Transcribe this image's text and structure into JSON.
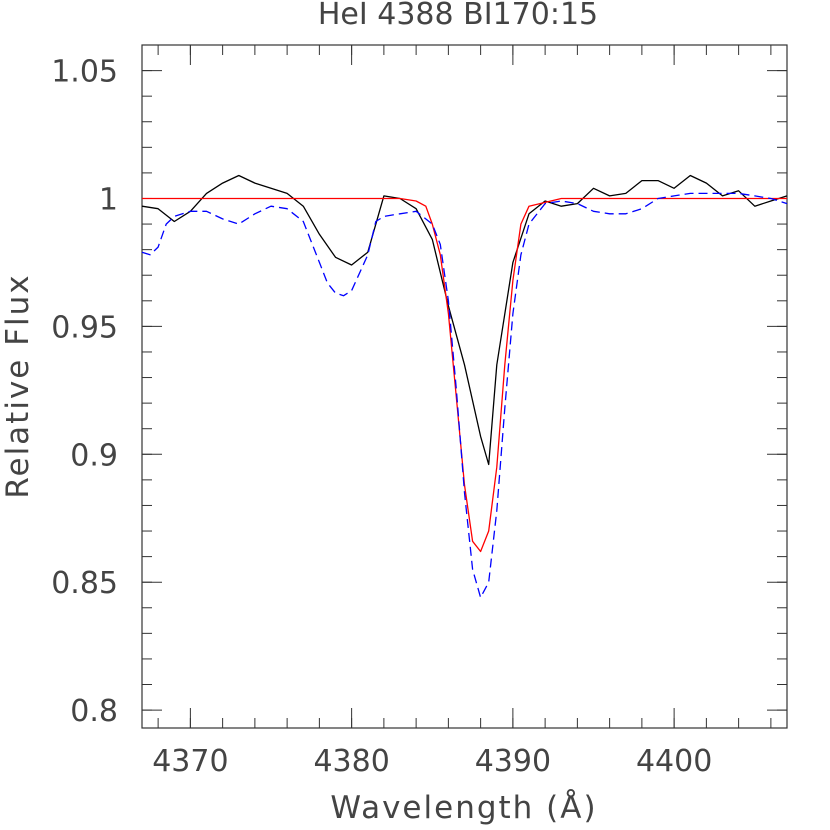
{
  "chart_data": {
    "type": "line",
    "title": "HeI 4388 BI170:15",
    "xlabel": "Wavelength (Å)",
    "ylabel": "Relative Flux",
    "xlim": [
      4367,
      4407
    ],
    "ylim": [
      0.793,
      1.06
    ],
    "x_ticks": [
      {
        "value": 4370,
        "label": "4370"
      },
      {
        "value": 4380,
        "label": "4380"
      },
      {
        "value": 4390,
        "label": "4390"
      },
      {
        "value": 4400,
        "label": "4400"
      }
    ],
    "y_ticks": [
      {
        "value": 0.8,
        "label": "0.8"
      },
      {
        "value": 0.85,
        "label": "0.85"
      },
      {
        "value": 0.9,
        "label": "0.9"
      },
      {
        "value": 0.95,
        "label": "0.95"
      },
      {
        "value": 1.0,
        "label": "1"
      },
      {
        "value": 1.05,
        "label": "1.05"
      }
    ],
    "grid": false,
    "legend": "none",
    "series": [
      {
        "color": "#000000",
        "style": "solid",
        "x": [
          4367,
          4368,
          4369,
          4370,
          4371,
          4372,
          4373,
          4374,
          4375,
          4376,
          4377,
          4378,
          4379,
          4380,
          4381,
          4382,
          4383,
          4384,
          4385,
          4386,
          4387,
          4388,
          4388.5,
          4389,
          4390,
          4391,
          4392,
          4393,
          4394,
          4395,
          4396,
          4397,
          4398,
          4399,
          4400,
          4401,
          4402,
          4403,
          4404,
          4405,
          4406,
          4407
        ],
        "y": [
          0.997,
          0.996,
          0.991,
          0.995,
          1.002,
          1.006,
          1.009,
          1.006,
          1.004,
          1.002,
          0.997,
          0.986,
          0.977,
          0.974,
          0.979,
          1.001,
          1.0,
          0.996,
          0.984,
          0.958,
          0.935,
          0.907,
          0.896,
          0.935,
          0.975,
          0.994,
          0.999,
          0.997,
          0.998,
          1.004,
          1.001,
          1.002,
          1.007,
          1.007,
          1.004,
          1.009,
          1.006,
          1.001,
          1.003,
          0.997,
          0.999,
          1.001
        ]
      },
      {
        "color": "#ff0000",
        "style": "solid",
        "x": [
          4367,
          4380,
          4383,
          4384,
          4384.6,
          4385,
          4385.5,
          4386,
          4386.5,
          4387,
          4387.5,
          4388,
          4388.5,
          4389,
          4389.5,
          4390,
          4390.5,
          4391,
          4393,
          4407
        ],
        "y": [
          1.0,
          1.0,
          1.0,
          0.999,
          0.997,
          0.99,
          0.978,
          0.955,
          0.922,
          0.888,
          0.866,
          0.862,
          0.87,
          0.895,
          0.935,
          0.968,
          0.99,
          0.997,
          1.0,
          1.0
        ]
      },
      {
        "color": "#0000ff",
        "style": "dashed",
        "x": [
          4367,
          4367.5,
          4368,
          4368.5,
          4369,
          4370,
          4371,
          4372,
          4373,
          4374,
          4375,
          4376,
          4377,
          4378,
          4378.5,
          4379,
          4379.5,
          4380,
          4381,
          4381.5,
          4382,
          4383,
          4384,
          4385,
          4385.5,
          4386,
          4386.5,
          4387,
          4387.5,
          4388,
          4388.5,
          4389,
          4389.5,
          4390,
          4390.5,
          4391,
          4392,
          4393,
          4394,
          4395,
          4396,
          4397,
          4398,
          4399,
          4400,
          4401,
          4402,
          4403,
          4404,
          4405,
          4406,
          4407
        ],
        "y": [
          0.979,
          0.978,
          0.981,
          0.99,
          0.993,
          0.995,
          0.995,
          0.992,
          0.99,
          0.994,
          0.997,
          0.996,
          0.991,
          0.975,
          0.967,
          0.963,
          0.962,
          0.964,
          0.978,
          0.991,
          0.993,
          0.994,
          0.995,
          0.99,
          0.982,
          0.96,
          0.925,
          0.885,
          0.855,
          0.844,
          0.85,
          0.878,
          0.918,
          0.955,
          0.978,
          0.99,
          0.998,
          0.999,
          0.998,
          0.995,
          0.994,
          0.994,
          0.996,
          1.0,
          1.001,
          1.002,
          1.002,
          1.002,
          1.002,
          1.001,
          1.0,
          0.998
        ]
      }
    ]
  }
}
